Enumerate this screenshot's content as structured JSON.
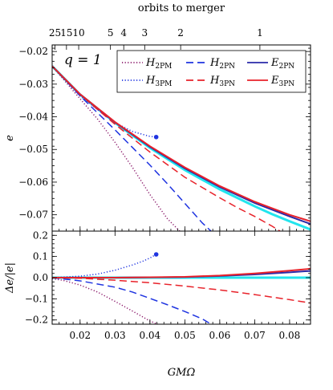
{
  "chart_data": {
    "type": "line",
    "top_axis": {
      "label": "orbits to merger",
      "ticks": [
        {
          "label": "25",
          "x": 0.0128
        },
        {
          "label": "15",
          "x": 0.0161
        },
        {
          "label": "10",
          "x": 0.0196
        },
        {
          "label": "5",
          "x": 0.0287
        },
        {
          "label": "4",
          "x": 0.0325
        },
        {
          "label": "3",
          "x": 0.0385
        },
        {
          "label": "2",
          "x": 0.0488
        },
        {
          "label": "1",
          "x": 0.0715
        }
      ]
    },
    "xlabel": "GMΩ",
    "xlim": [
      0.012,
      0.086
    ],
    "xticks": [
      0.02,
      0.03,
      0.04,
      0.05,
      0.06,
      0.07,
      0.08
    ],
    "annotation": "q = 1",
    "legend": [
      {
        "key": "h2pm",
        "main": "H",
        "sub": "2PM",
        "color": "#8b1a6b",
        "dash": "1.2 2.4"
      },
      {
        "key": "h2pn",
        "main": "H",
        "sub": "2PN",
        "color": "#1f34e0",
        "dash": "9 5"
      },
      {
        "key": "e2pn",
        "main": "E",
        "sub": "2PN",
        "color": "#2a2aa8",
        "dash": ""
      },
      {
        "key": "h3pm",
        "main": "H",
        "sub": "3PM",
        "color": "#1f34e0",
        "dash": "1.2 2.4"
      },
      {
        "key": "h3pn",
        "main": "H",
        "sub": "3PN",
        "color": "#e8222a",
        "dash": "9 5"
      },
      {
        "key": "e3pn",
        "main": "E",
        "sub": "3PN",
        "color": "#e8222a",
        "dash": ""
      }
    ],
    "panels": [
      {
        "name": "top",
        "ylabel": "e",
        "ylim": [
          -0.075,
          -0.018
        ],
        "yticks": [
          -0.07,
          -0.06,
          -0.05,
          -0.04,
          -0.03,
          -0.02
        ],
        "yticklabels": [
          "−0.07",
          "−0.06",
          "−0.05",
          "−0.04",
          "−0.03",
          "−0.02"
        ],
        "series": [
          {
            "key": "cyan",
            "color": "#22e5ee",
            "width": 3,
            "dash": "",
            "x": [
              0.012,
              0.02,
              0.03,
              0.04,
              0.05,
              0.06,
              0.065,
              0.07,
              0.075,
              0.08,
              0.086
            ],
            "y": [
              -0.0245,
              -0.0332,
              -0.0418,
              -0.0495,
              -0.0563,
              -0.0622,
              -0.0648,
              -0.0674,
              -0.0698,
              -0.072,
              -0.0745
            ]
          },
          {
            "key": "h2pm",
            "color": "#8b1a6b",
            "width": 1.5,
            "dash": "1.2 2.4",
            "x": [
              0.012,
              0.02,
              0.025,
              0.03,
              0.035,
              0.04,
              0.045,
              0.049
            ],
            "y": [
              -0.0245,
              -0.0345,
              -0.0407,
              -0.0478,
              -0.0555,
              -0.0638,
              -0.0712,
              -0.0755
            ]
          },
          {
            "key": "h3pm",
            "color": "#1f34e0",
            "width": 1.5,
            "dash": "1.2 2.4",
            "x": [
              0.012,
              0.02,
              0.025,
              0.03,
              0.035,
              0.04,
              0.0418
            ],
            "y": [
              -0.0245,
              -0.0336,
              -0.0378,
              -0.0418,
              -0.0445,
              -0.046,
              -0.0462
            ]
          },
          {
            "key": "h2pn",
            "color": "#1f34e0",
            "width": 1.5,
            "dash": "9 5",
            "x": [
              0.012,
              0.02,
              0.03,
              0.04,
              0.045,
              0.05,
              0.055,
              0.058
            ],
            "y": [
              -0.0245,
              -0.0336,
              -0.044,
              -0.0548,
              -0.0605,
              -0.0665,
              -0.0725,
              -0.0755
            ]
          },
          {
            "key": "h3pn",
            "color": "#e8222a",
            "width": 1.5,
            "dash": "9 5",
            "x": [
              0.012,
              0.02,
              0.03,
              0.04,
              0.05,
              0.06,
              0.065,
              0.07,
              0.075,
              0.078
            ],
            "y": [
              -0.0245,
              -0.0332,
              -0.0423,
              -0.0508,
              -0.0585,
              -0.0648,
              -0.0678,
              -0.0705,
              -0.0735,
              -0.0755
            ]
          },
          {
            "key": "e2pn",
            "color": "#2a2aa8",
            "width": 2,
            "dash": "",
            "x": [
              0.012,
              0.02,
              0.03,
              0.04,
              0.05,
              0.06,
              0.07,
              0.08,
              0.086
            ],
            "y": [
              -0.0245,
              -0.0331,
              -0.0417,
              -0.0492,
              -0.0558,
              -0.0615,
              -0.0664,
              -0.0705,
              -0.0728
            ]
          },
          {
            "key": "e3pn",
            "color": "#e8222a",
            "width": 2,
            "dash": "",
            "x": [
              0.012,
              0.02,
              0.03,
              0.04,
              0.05,
              0.06,
              0.07,
              0.08,
              0.086
            ],
            "y": [
              -0.0245,
              -0.0331,
              -0.0416,
              -0.049,
              -0.0555,
              -0.0612,
              -0.066,
              -0.07,
              -0.072
            ]
          }
        ],
        "endpoint": {
          "key": "h3pm",
          "color": "#1f34e0",
          "x": 0.0418,
          "y": -0.0462
        }
      },
      {
        "name": "bottom",
        "ylabel": "Δe/|e|",
        "ylim": [
          -0.22,
          0.22
        ],
        "yticks": [
          -0.2,
          -0.1,
          0.0,
          0.1,
          0.2
        ],
        "yticklabels": [
          "−0.2",
          "−0.1",
          "0.0",
          "0.1",
          "0.2"
        ],
        "series": [
          {
            "key": "cyan",
            "color": "#22e5ee",
            "width": 3,
            "dash": "",
            "x": [
              0.012,
              0.086
            ],
            "y": [
              0.0,
              0.0
            ]
          },
          {
            "key": "h2pm",
            "color": "#8b1a6b",
            "width": 1.5,
            "dash": "1.2 2.4",
            "x": [
              0.012,
              0.015,
              0.02,
              0.025,
              0.03,
              0.035,
              0.04,
              0.043
            ],
            "y": [
              -0.005,
              -0.012,
              -0.035,
              -0.068,
              -0.112,
              -0.158,
              -0.205,
              -0.225
            ]
          },
          {
            "key": "h3pm",
            "color": "#1f34e0",
            "width": 1.5,
            "dash": "1.2 2.4",
            "x": [
              0.012,
              0.02,
              0.025,
              0.03,
              0.035,
              0.038,
              0.04,
              0.0418
            ],
            "y": [
              0.0,
              0.007,
              0.017,
              0.035,
              0.06,
              0.078,
              0.093,
              0.11
            ]
          },
          {
            "key": "h2pn",
            "color": "#1f34e0",
            "width": 1.5,
            "dash": "9 5",
            "x": [
              0.012,
              0.02,
              0.03,
              0.035,
              0.04,
              0.045,
              0.05,
              0.055,
              0.058
            ],
            "y": [
              0.0,
              -0.015,
              -0.045,
              -0.068,
              -0.098,
              -0.128,
              -0.16,
              -0.195,
              -0.225
            ]
          },
          {
            "key": "h3pn",
            "color": "#e8222a",
            "width": 1.5,
            "dash": "9 5",
            "x": [
              0.012,
              0.02,
              0.03,
              0.04,
              0.05,
              0.06,
              0.07,
              0.08,
              0.086
            ],
            "y": [
              0.0,
              -0.003,
              -0.012,
              -0.024,
              -0.04,
              -0.058,
              -0.08,
              -0.104,
              -0.12
            ]
          },
          {
            "key": "e2pn",
            "color": "#2a2aa8",
            "width": 2,
            "dash": "",
            "x": [
              0.012,
              0.03,
              0.05,
              0.06,
              0.07,
              0.08,
              0.086
            ],
            "y": [
              0.0,
              0.0,
              0.003,
              0.008,
              0.015,
              0.025,
              0.032
            ]
          },
          {
            "key": "e3pn",
            "color": "#e8222a",
            "width": 2,
            "dash": "",
            "x": [
              0.012,
              0.03,
              0.05,
              0.06,
              0.07,
              0.08,
              0.086
            ],
            "y": [
              0.0,
              0.0,
              0.004,
              0.01,
              0.02,
              0.033,
              0.042
            ]
          }
        ],
        "endpoint": {
          "key": "h3pm",
          "color": "#1f34e0",
          "x": 0.0418,
          "y": 0.11
        }
      }
    ]
  }
}
